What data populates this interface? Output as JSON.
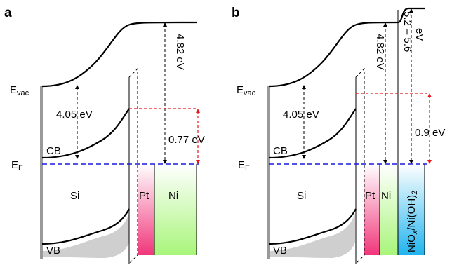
{
  "colors": {
    "pt_top": "#ffffff",
    "pt_bottom": "#f0367a",
    "ni_top": "#ffffff",
    "ni_bottom": "#a8f57a",
    "niox_top": "#ffffff",
    "niox_bottom": "#21b4ee",
    "fermi": "#1a1adb",
    "red": "#e8161c",
    "shadow": "#cfcfcf"
  },
  "panel_a": {
    "letter": "a",
    "evac": "E",
    "evac_sub": "vac",
    "ef": "E",
    "ef_sub": "F",
    "cb": "CB",
    "vb": "VB",
    "si": "Si",
    "pt": "Pt",
    "ni": "Ni",
    "gap1": "4.05 eV",
    "gap2": "4.82 eV",
    "barrier": "0.77 eV"
  },
  "panel_b": {
    "letter": "b",
    "evac": "E",
    "evac_sub": "vac",
    "ef": "E",
    "ef_sub": "F",
    "cb": "CB",
    "vb": "VB",
    "si": "Si",
    "pt": "Pt",
    "ni": "Ni",
    "niox_1": "NiO",
    "niox_x": "x",
    "niox_2": "/Ni(OH)",
    "niox_sub": "2",
    "gap1": "4.05 eV",
    "gap2": "4.82 eV",
    "gap3_line1": "5.2 – 5.6",
    "gap3_line2": "eV",
    "barrier": "0.9 eV"
  }
}
